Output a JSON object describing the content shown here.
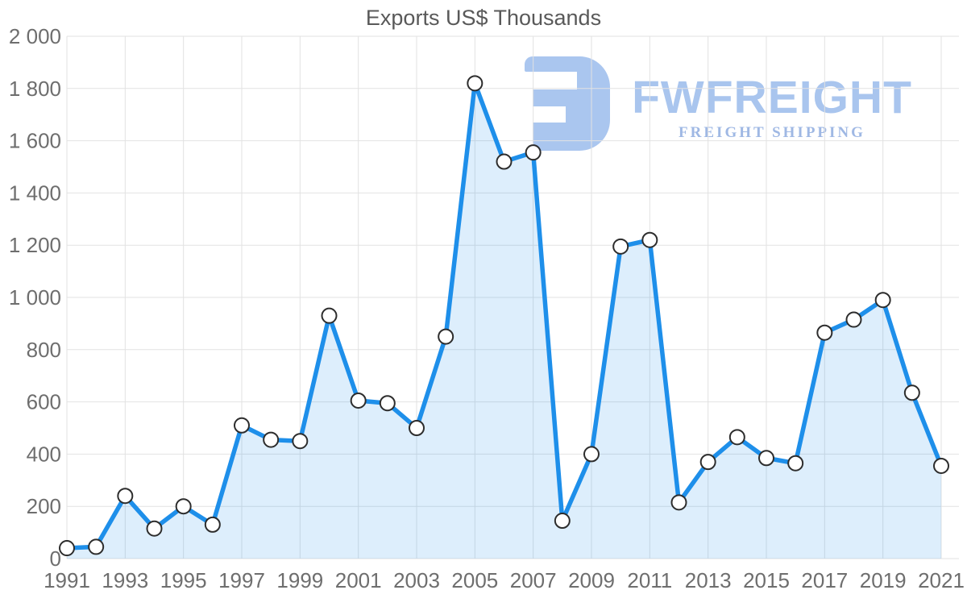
{
  "title": "Exports US$ Thousands",
  "watermark": {
    "brand": "FWFREIGHT",
    "tagline": "FREIGHT SHIPPING",
    "brand_color": "#a9c5ee",
    "tagline_color": "#9fb8e4"
  },
  "colors": {
    "line": "#1e8fea",
    "area_fill": "rgba(30,143,234,0.15)",
    "marker_fill": "#ffffff",
    "marker_stroke": "#2d2d2d",
    "gridline": "#e2e2e2",
    "axis_label": "#6e6e6e",
    "title_text": "#595959"
  },
  "chart_data": {
    "type": "area",
    "title": "Exports US$ Thousands",
    "xlabel": "",
    "ylabel": "",
    "x": [
      1991,
      1992,
      1993,
      1994,
      1995,
      1996,
      1997,
      1998,
      1999,
      2000,
      2001,
      2002,
      2003,
      2004,
      2005,
      2006,
      2007,
      2008,
      2009,
      2010,
      2011,
      2012,
      2013,
      2014,
      2015,
      2016,
      2017,
      2018,
      2019,
      2020,
      2021
    ],
    "values": [
      40,
      45,
      240,
      115,
      200,
      130,
      510,
      455,
      450,
      930,
      605,
      595,
      500,
      850,
      1820,
      1520,
      1555,
      145,
      400,
      1195,
      1220,
      215,
      370,
      465,
      385,
      365,
      865,
      915,
      990,
      635,
      355
    ],
    "x_tick_labels": [
      "1991",
      "1993",
      "1995",
      "1997",
      "1999",
      "2001",
      "2003",
      "2005",
      "2007",
      "2009",
      "2011",
      "2013",
      "2015",
      "2017",
      "2019",
      "2021"
    ],
    "y_ticks": [
      0,
      200,
      400,
      600,
      800,
      1000,
      1200,
      1400,
      1600,
      1800,
      2000
    ],
    "y_tick_labels": [
      "0",
      "200",
      "400",
      "600",
      "800",
      "1 000",
      "1 200",
      "1 400",
      "1 600",
      "1 800",
      "2 000"
    ],
    "ylim": [
      0,
      2000
    ],
    "grid": true,
    "legend_position": "none",
    "markers": "circle"
  }
}
